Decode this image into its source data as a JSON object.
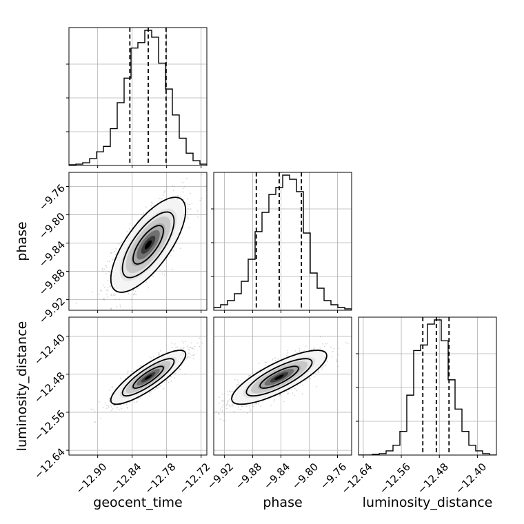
{
  "chart_data": {
    "type": "corner",
    "parameters": [
      "geocent_time",
      "phase",
      "luminosity_distance"
    ],
    "ranges": {
      "geocent_time": [
        -12.95,
        -12.71
      ],
      "phase": [
        -9.935,
        -9.74
      ],
      "luminosity_distance": [
        -12.65,
        -12.36
      ]
    },
    "ticks": {
      "geocent_time": {
        "values": [
          -12.9,
          -12.84,
          -12.78,
          -12.72
        ],
        "labels": [
          "−12.90",
          "−12.84",
          "−12.78",
          "−12.72"
        ]
      },
      "phase": {
        "values": [
          -9.92,
          -9.88,
          -9.84,
          -9.8,
          -9.76
        ],
        "labels": [
          "−9.92",
          "−9.88",
          "−9.84",
          "−9.80",
          "−9.76"
        ]
      },
      "luminosity_distance": {
        "values": [
          -12.64,
          -12.56,
          -12.48,
          -12.4
        ],
        "labels": [
          "−12.64",
          "−12.56",
          "−12.48",
          "−12.40"
        ]
      }
    },
    "histograms": {
      "geocent_time": {
        "bin_edges": [
          -12.95,
          -12.938,
          -12.926,
          -12.914,
          -12.902,
          -12.89,
          -12.878,
          -12.866,
          -12.854,
          -12.842,
          -12.83,
          -12.818,
          -12.806,
          -12.794,
          -12.782,
          -12.77,
          -12.758,
          -12.746,
          -12.734,
          -12.722,
          -12.71
        ],
        "counts": [
          0.005,
          0.01,
          0.02,
          0.05,
          0.1,
          0.14,
          0.27,
          0.46,
          0.64,
          0.86,
          0.9,
          0.99,
          0.94,
          0.75,
          0.56,
          0.37,
          0.2,
          0.09,
          0.035,
          0.01
        ],
        "quantiles": [
          -12.844,
          -12.812,
          -12.781
        ]
      },
      "phase": {
        "bin_edges": [
          -9.935,
          -9.92525,
          -9.9155,
          -9.90575,
          -9.896,
          -9.88625,
          -9.8765,
          -9.86675,
          -9.857,
          -9.84725,
          -9.8375,
          -9.82775,
          -9.818,
          -9.80825,
          -9.7985,
          -9.78875,
          -9.779,
          -9.76925,
          -9.7595,
          -9.74975,
          -9.74
        ],
        "counts": [
          0.02,
          0.04,
          0.07,
          0.12,
          0.21,
          0.37,
          0.57,
          0.71,
          0.84,
          0.89,
          0.98,
          0.95,
          0.86,
          0.56,
          0.27,
          0.16,
          0.07,
          0.04,
          0.02,
          0.01
        ],
        "quantiles": [
          -9.8748,
          -9.8424,
          -9.811
        ]
      },
      "luminosity_distance": {
        "bin_edges": [
          -12.65,
          -12.6355,
          -12.621,
          -12.6065,
          -12.592,
          -12.5775,
          -12.563,
          -12.5485,
          -12.534,
          -12.5195,
          -12.505,
          -12.4905,
          -12.476,
          -12.4615,
          -12.447,
          -12.4325,
          -12.418,
          -12.4035,
          -12.389,
          -12.3745,
          -12.36
        ],
        "counts": [
          0.0,
          0.0,
          0.005,
          0.01,
          0.03,
          0.07,
          0.17,
          0.43,
          0.75,
          0.79,
          0.94,
          0.97,
          0.82,
          0.54,
          0.33,
          0.17,
          0.07,
          0.03,
          0.01,
          0.0
        ],
        "quantiles": [
          -12.5148,
          -12.4864,
          -12.4597
        ]
      }
    },
    "joint": [
      {
        "x": "geocent_time",
        "y": "phase",
        "mean": [
          -12.812,
          -9.8424
        ],
        "sd": [
          0.031,
          0.032
        ],
        "rho": 0.72
      },
      {
        "x": "geocent_time",
        "y": "luminosity_distance",
        "mean": [
          -12.812,
          -12.4864
        ],
        "sd": [
          0.031,
          0.027
        ],
        "rho": 0.85
      },
      {
        "x": "phase",
        "y": "luminosity_distance",
        "mean": [
          -9.8424,
          -12.4864
        ],
        "sd": [
          0.032,
          0.027
        ],
        "rho": 0.8
      }
    ],
    "grid": true,
    "hist_color": "#000000",
    "contour_color": "#000000",
    "point_color": "#888888"
  }
}
